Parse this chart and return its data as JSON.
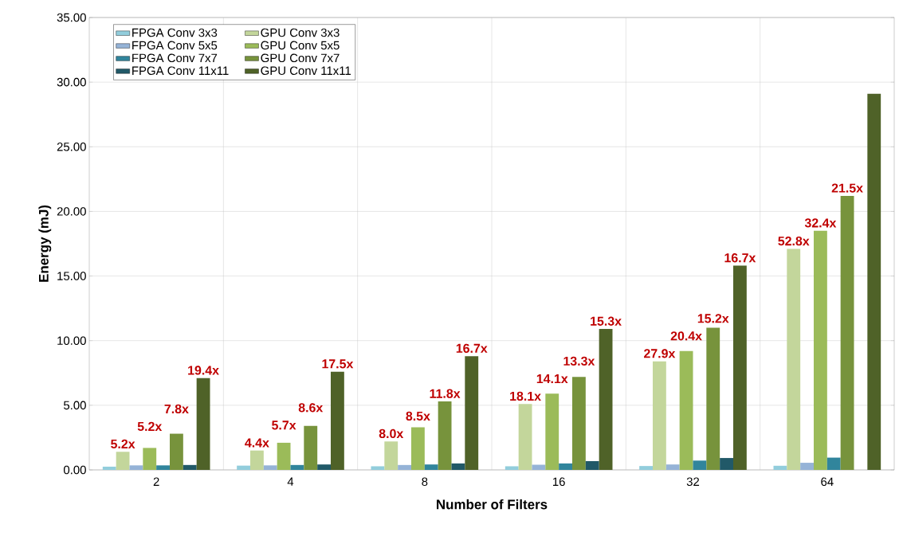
{
  "chart_data": {
    "type": "bar",
    "xlabel": "Number of Filters",
    "ylabel": "Energy (mJ)",
    "categories": [
      "2",
      "4",
      "8",
      "16",
      "32",
      "64"
    ],
    "ylim": [
      0,
      35
    ],
    "yticks": [
      {
        "value": 0,
        "label": "0.00"
      },
      {
        "value": 5,
        "label": "5.00"
      },
      {
        "value": 10,
        "label": "10.00"
      },
      {
        "value": 15,
        "label": "15.00"
      },
      {
        "value": 20,
        "label": "20.00"
      },
      {
        "value": 25,
        "label": "25.00"
      },
      {
        "value": 30,
        "label": "30.00"
      },
      {
        "value": 35,
        "label": "35.00"
      }
    ],
    "grid": true,
    "legend": "top left",
    "series": [
      {
        "name": "FPGA Conv 3x3",
        "color": "#92cddc",
        "values": [
          0.25,
          0.33,
          0.28,
          0.28,
          0.3,
          0.32
        ]
      },
      {
        "name": "GPU Conv 3x3",
        "color": "#c3d69b",
        "values": [
          1.4,
          1.5,
          2.2,
          5.1,
          8.4,
          17.1
        ]
      },
      {
        "name": "FPGA Conv 5x5",
        "color": "#95b3d7",
        "values": [
          0.35,
          0.35,
          0.38,
          0.4,
          0.42,
          0.55
        ]
      },
      {
        "name": "GPU Conv 5x5",
        "color": "#9bbb59",
        "values": [
          1.7,
          2.1,
          3.3,
          5.9,
          9.2,
          18.5
        ]
      },
      {
        "name": "FPGA Conv 7x7",
        "color": "#31859c",
        "values": [
          0.35,
          0.38,
          0.42,
          0.5,
          0.72,
          0.95
        ]
      },
      {
        "name": "GPU Conv 7x7",
        "color": "#77933c",
        "values": [
          2.8,
          3.4,
          5.3,
          7.2,
          11.0,
          21.2
        ]
      },
      {
        "name": "FPGA Conv 11x11",
        "color": "#215968",
        "values": [
          0.38,
          0.42,
          0.5,
          0.68,
          0.92,
          null
        ]
      },
      {
        "name": "GPU Conv 11x11",
        "color": "#4f6228",
        "values": [
          7.1,
          7.6,
          8.8,
          10.9,
          15.8,
          29.1
        ]
      }
    ],
    "annotations": [
      "5.2x",
      "5.2x",
      "7.8x",
      "19.4x",
      "4.4x",
      "5.7x",
      "8.6x",
      "17.5x",
      "8.0x",
      "8.5x",
      "11.8x",
      "16.7x",
      "18.1x",
      "14.1x",
      "13.3x",
      "15.3x",
      "27.9x",
      "20.4x",
      "15.2x",
      "16.7x",
      "52.8x",
      "32.4x",
      "21.5x"
    ]
  }
}
